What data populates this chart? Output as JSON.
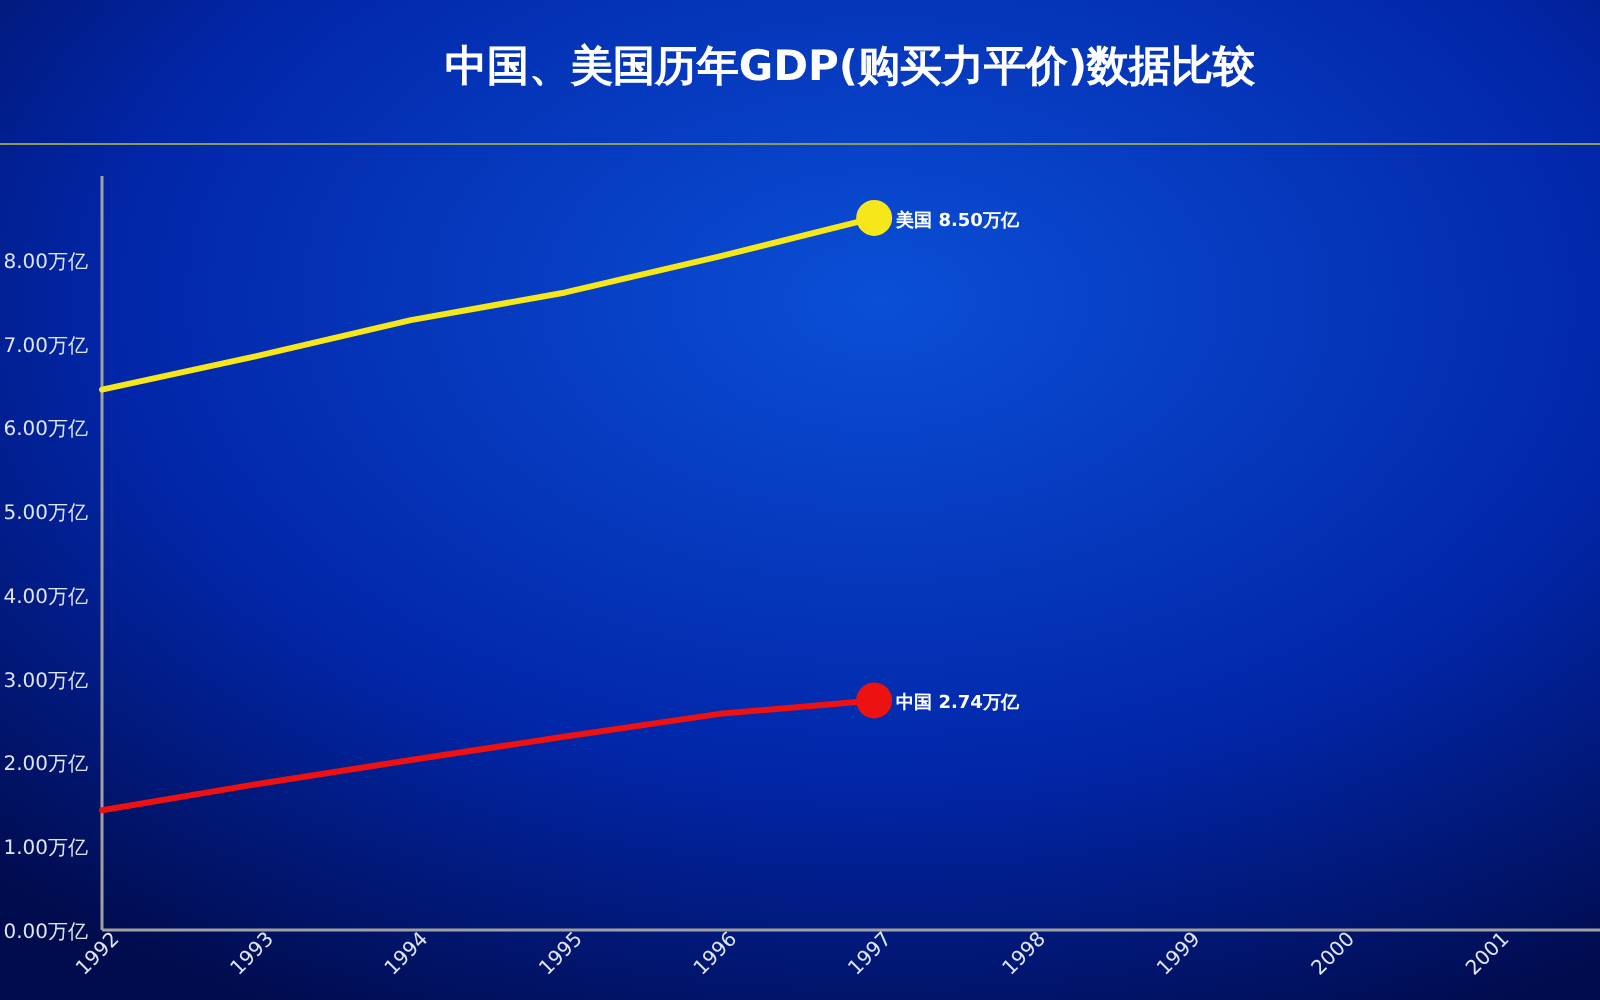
{
  "chart_data": {
    "type": "line",
    "title": "中国、美国历年GDP(购买力平价)数据比较",
    "x": [
      1992,
      1993,
      1994,
      1995,
      1996,
      1997
    ],
    "series": [
      {
        "color": "#f5e71a",
        "values": [
          6.45,
          6.85,
          7.28,
          7.61,
          8.04,
          8.5
        ],
        "value_labels": [
          null,
          null,
          null,
          null,
          null,
          "美国 8.50万亿"
        ]
      },
      {
        "color": "#ee1111",
        "values": [
          1.43,
          1.74,
          2.03,
          2.31,
          2.58,
          2.74
        ],
        "value_labels": [
          null,
          null,
          null,
          null,
          null,
          "中国 2.74万亿"
        ]
      }
    ],
    "xlim": [
      1992,
      2001.7
    ],
    "xticks": [
      1992,
      1993,
      1994,
      1995,
      1996,
      1997,
      1998,
      1999,
      2000,
      2001
    ],
    "ylim": [
      0,
      9
    ],
    "yticks": [
      {
        "value": 0,
        "label": "0.00万亿"
      },
      {
        "value": 1,
        "label": "1.00万亿"
      },
      {
        "value": 2,
        "label": "2.00万亿"
      },
      {
        "value": 3,
        "label": "3.00万亿"
      },
      {
        "value": 4,
        "label": "4.00万亿"
      },
      {
        "value": 5,
        "label": "5.00万亿"
      },
      {
        "value": 6,
        "label": "6.00万亿"
      },
      {
        "value": 7,
        "label": "7.00万亿"
      },
      {
        "value": 8,
        "label": "8.00万亿"
      }
    ],
    "grid": false,
    "legend": false,
    "marker": "none",
    "line_style": "solid"
  }
}
